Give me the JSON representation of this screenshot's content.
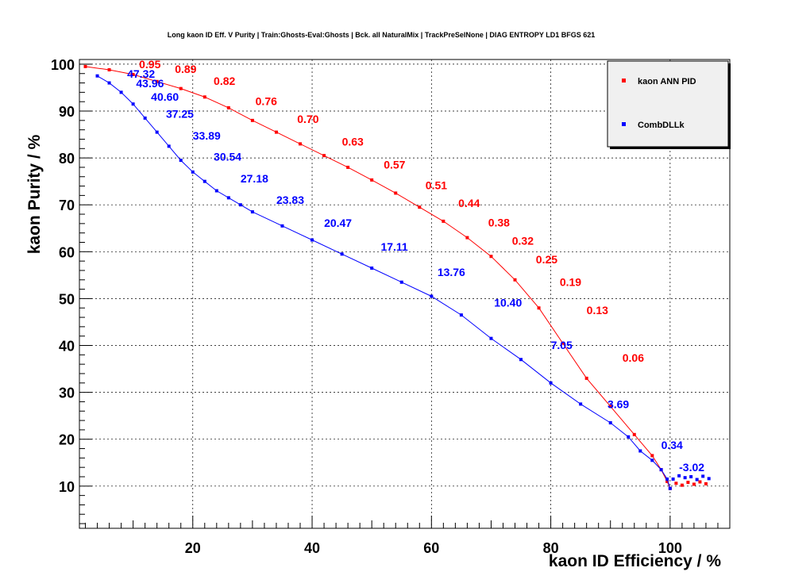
{
  "chart_data": {
    "type": "line",
    "title": "Long kaon ID Eff. V Purity | Train:Ghosts-Eval:Ghosts | Bck. all NaturalMix | TrackPreSelNone | DIAG ENTROPY LD1 BFGS 621",
    "xlabel": "kaon ID Efficiency / %",
    "ylabel": "kaon Purity / %",
    "xlim": [
      1,
      110
    ],
    "ylim": [
      1,
      101
    ],
    "xticks": [
      20,
      40,
      60,
      80,
      100
    ],
    "yticks": [
      10,
      20,
      30,
      40,
      50,
      60,
      70,
      80,
      90,
      100
    ],
    "grid": true,
    "legend_position": "top-right",
    "series": [
      {
        "name": "kaon ANN PID",
        "color": "#ff0000",
        "x": [
          2,
          6,
          10,
          14,
          18,
          22,
          26,
          30,
          34,
          38,
          42,
          46,
          50,
          54,
          58,
          62,
          66,
          70,
          74,
          78,
          82,
          86,
          90,
          94,
          97,
          98.5,
          99.5,
          100
        ],
        "y": [
          99.5,
          98.8,
          97.8,
          96.3,
          94.8,
          93,
          90.7,
          88,
          85.5,
          83,
          80.5,
          78,
          75.3,
          72.5,
          69.5,
          66.5,
          63,
          59,
          54,
          48,
          40.5,
          33,
          27,
          21,
          16.5,
          13.5,
          11,
          9.5
        ],
        "cut_labels": [
          {
            "text": "0.95",
            "x": 11,
            "y": 99.1
          },
          {
            "text": "0.89",
            "x": 17,
            "y": 98.1
          },
          {
            "text": "0.82",
            "x": 23.5,
            "y": 95.6
          },
          {
            "text": "0.76",
            "x": 30.5,
            "y": 91.3
          },
          {
            "text": "0.70",
            "x": 37.5,
            "y": 87.5
          },
          {
            "text": "0.63",
            "x": 45,
            "y": 82.6
          },
          {
            "text": "0.57",
            "x": 52,
            "y": 77.7
          },
          {
            "text": "0.51",
            "x": 59,
            "y": 73.3
          },
          {
            "text": "0.44",
            "x": 64.5,
            "y": 69.5
          },
          {
            "text": "0.38",
            "x": 69.5,
            "y": 65.4
          },
          {
            "text": "0.32",
            "x": 73.5,
            "y": 61.5
          },
          {
            "text": "0.25",
            "x": 77.5,
            "y": 57.5
          },
          {
            "text": "0.19",
            "x": 81.5,
            "y": 52.7
          },
          {
            "text": "0.13",
            "x": 86,
            "y": 46.7
          },
          {
            "text": "0.06",
            "x": 92,
            "y": 36.5
          }
        ]
      },
      {
        "name": "CombDLLk",
        "color": "#0000ff",
        "x": [
          4,
          6,
          8,
          10,
          12,
          14,
          16,
          18,
          20,
          22,
          24,
          26,
          28,
          30,
          35,
          40,
          45,
          50,
          55,
          60,
          65,
          70,
          75,
          80,
          85,
          90,
          93,
          95,
          97,
          98.5,
          99.5,
          100
        ],
        "y": [
          97.5,
          96,
          94,
          91.5,
          88.5,
          85.5,
          82.5,
          79.5,
          77,
          75,
          73,
          71.5,
          70,
          68.5,
          65.5,
          62.5,
          59.5,
          56.5,
          53.5,
          50.5,
          46.5,
          41.5,
          37,
          32,
          27.5,
          23.5,
          20.5,
          17.5,
          15.5,
          13.5,
          11.5,
          9.5
        ],
        "cut_labels": [
          {
            "text": "47.32",
            "x": 9,
            "y": 97.1
          },
          {
            "text": "43.96",
            "x": 10.5,
            "y": 95.1
          },
          {
            "text": "40.60",
            "x": 13,
            "y": 92.2
          },
          {
            "text": "37.25",
            "x": 15.5,
            "y": 88.6
          },
          {
            "text": "33.89",
            "x": 20,
            "y": 83.9
          },
          {
            "text": "30.54",
            "x": 23.5,
            "y": 79.4
          },
          {
            "text": "27.18",
            "x": 28,
            "y": 74.8
          },
          {
            "text": "23.83",
            "x": 34,
            "y": 70.2
          },
          {
            "text": "20.47",
            "x": 42,
            "y": 65.3
          },
          {
            "text": "17.11",
            "x": 51.5,
            "y": 60.2
          },
          {
            "text": "13.76",
            "x": 61,
            "y": 54.8
          },
          {
            "text": "10.40",
            "x": 70.5,
            "y": 48.3
          },
          {
            "text": "7.05",
            "x": 80,
            "y": 39.2
          },
          {
            "text": "3.69",
            "x": 89.5,
            "y": 26.6
          },
          {
            "text": "0.34",
            "x": 98.5,
            "y": 17.9
          },
          {
            "text": "-3.02",
            "x": 101.5,
            "y": 13.2
          }
        ]
      }
    ]
  }
}
